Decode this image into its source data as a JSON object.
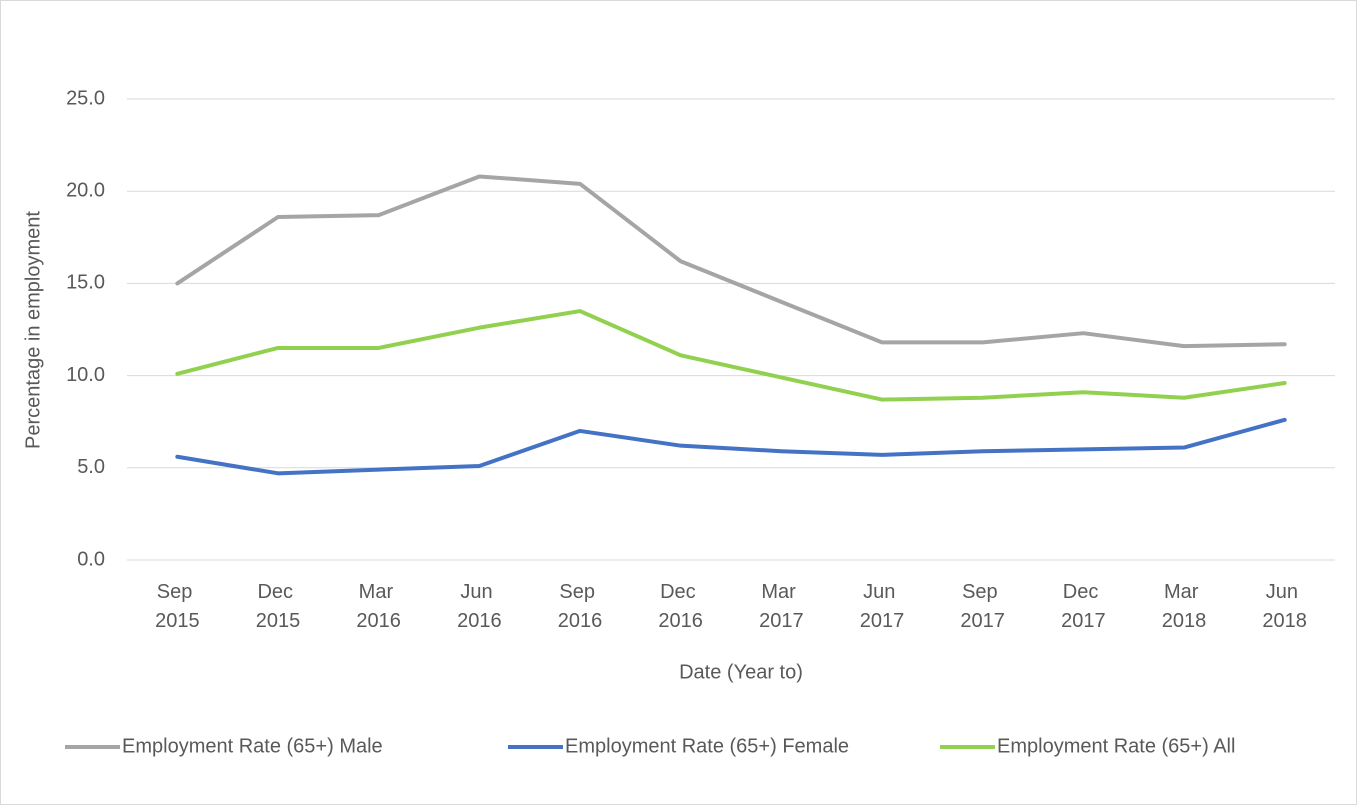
{
  "chart_data": {
    "type": "line",
    "x_label": "Date (Year to)",
    "y_label": "Percentage in employment",
    "categories": [
      "Sep 2015",
      "Dec 2015",
      "Mar 2016",
      "Jun 2016",
      "Sep 2016",
      "Dec 2016",
      "Mar 2017",
      "Jun 2017",
      "Sep 2017",
      "Dec 2017",
      "Mar 2018",
      "Jun 2018"
    ],
    "series": [
      {
        "name": "Employment Rate (65+) Male",
        "color": "#a5a5a5",
        "values": [
          15.0,
          18.6,
          18.7,
          20.8,
          20.4,
          16.2,
          14.0,
          11.8,
          11.8,
          12.3,
          11.6,
          11.7
        ]
      },
      {
        "name": "Employment Rate (65+) Female",
        "color": "#4472c4",
        "values": [
          5.6,
          4.7,
          4.9,
          5.1,
          7.0,
          6.2,
          5.9,
          5.7,
          5.9,
          6.0,
          6.1,
          7.6
        ]
      },
      {
        "name": "Employment Rate (65+) All",
        "color": "#92d050",
        "values": [
          10.1,
          11.5,
          11.5,
          12.6,
          13.5,
          11.1,
          9.9,
          8.7,
          8.8,
          9.1,
          8.8,
          9.6
        ]
      }
    ],
    "ylim": [
      0,
      25
    ],
    "yticks": [
      {
        "value": 0,
        "label": "0.0"
      },
      {
        "value": 5,
        "label": "5.0"
      },
      {
        "value": 10,
        "label": "10.0"
      },
      {
        "value": 15,
        "label": "15.0"
      },
      {
        "value": 20,
        "label": "20.0"
      },
      {
        "value": 25,
        "label": "25.0"
      }
    ],
    "grid": true,
    "legend": "bottom"
  }
}
